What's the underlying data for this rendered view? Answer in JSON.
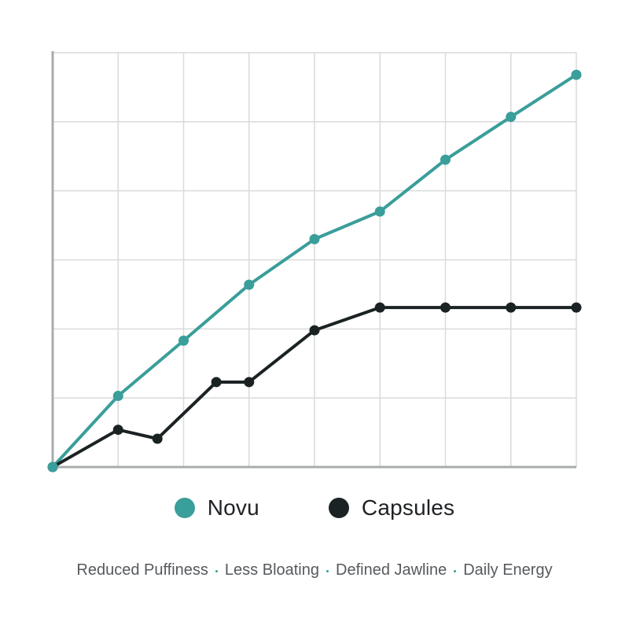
{
  "chart_data": {
    "type": "line",
    "x": [
      0,
      1,
      1.6,
      2,
      2.5,
      3,
      4,
      5,
      6,
      7,
      8
    ],
    "series": [
      {
        "name": "Novu",
        "color": "#3a9e9a",
        "points": [
          [
            0,
            0
          ],
          [
            1,
            1.03
          ],
          [
            2,
            1.83
          ],
          [
            3,
            2.64
          ],
          [
            4,
            3.3
          ],
          [
            5,
            3.7
          ],
          [
            6,
            4.45
          ],
          [
            7,
            5.07
          ],
          [
            8,
            5.68
          ]
        ]
      },
      {
        "name": "Capsules",
        "color": "#1b2223",
        "points": [
          [
            0,
            0
          ],
          [
            1,
            0.54
          ],
          [
            1.6,
            0.41
          ],
          [
            2.5,
            1.23
          ],
          [
            3,
            1.23
          ],
          [
            4,
            1.98
          ],
          [
            5,
            2.31
          ],
          [
            6,
            2.31
          ],
          [
            7,
            2.31
          ],
          [
            8,
            2.31
          ]
        ]
      }
    ],
    "xlim": [
      0,
      8
    ],
    "ylim": [
      0,
      6
    ],
    "grid": true,
    "legend": "bottom-center"
  },
  "benefits": {
    "items": [
      "Reduced Puffiness",
      "Less Bloating",
      "Defined Jawline",
      "Daily Energy"
    ],
    "separator_color": "#3a9e9a"
  }
}
